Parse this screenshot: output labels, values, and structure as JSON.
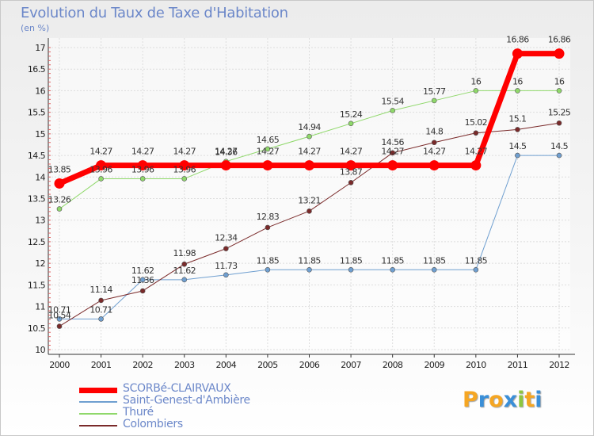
{
  "title": "Evolution du Taux de Taxe d'Habitation",
  "unit": "(en %)",
  "logo": {
    "text": "Proxiti",
    "letters": [
      {
        "ch": "P",
        "color": "#f5a623"
      },
      {
        "ch": "r",
        "color": "#3a8fd8"
      },
      {
        "ch": "o",
        "color": "#f5a623"
      },
      {
        "ch": "x",
        "color": "#3a8fd8"
      },
      {
        "ch": "i",
        "color": "#8dc63f"
      },
      {
        "ch": "t",
        "color": "#f5a623"
      },
      {
        "ch": "i",
        "color": "#3a8fd8"
      }
    ]
  },
  "chart_data": {
    "type": "line",
    "title": "Evolution du Taux de Taxe d'Habitation",
    "ylabel": "(en %)",
    "xlabel": "",
    "x": [
      2000,
      2001,
      2002,
      2003,
      2004,
      2005,
      2006,
      2007,
      2008,
      2009,
      2010,
      2011,
      2012
    ],
    "ylim": [
      10,
      17
    ],
    "yticks": [
      "10",
      "10.5",
      "11",
      "11.5",
      "12",
      "12.5",
      "13",
      "13.5",
      "14",
      "14.5",
      "15",
      "15.5",
      "16",
      "16.5",
      "17"
    ],
    "grid": true,
    "legend_position": "bottom-left",
    "series": [
      {
        "name": "SCORBé-CLAIRVAUX",
        "color": "#ff0000",
        "width": 7,
        "values": [
          13.85,
          14.27,
          14.27,
          14.27,
          14.27,
          14.27,
          14.27,
          14.27,
          14.27,
          14.27,
          14.27,
          16.86,
          16.86
        ],
        "labels": [
          "13.85",
          "14.27",
          "14.27",
          "14.27",
          "14.27",
          "14.27",
          "14.27",
          "14.27",
          "14.27",
          "14.27",
          "14.27",
          "16.86",
          "16.86"
        ]
      },
      {
        "name": "Saint-Genest-d'Ambière",
        "color": "#6f9fd0",
        "width": 1,
        "values": [
          10.71,
          10.71,
          11.62,
          11.62,
          11.73,
          11.85,
          11.85,
          11.85,
          11.85,
          11.85,
          11.85,
          14.5,
          14.5
        ],
        "labels": [
          "10.71",
          "10.71",
          "11.62",
          "11.62",
          "11.73",
          "11.85",
          "11.85",
          "11.85",
          "11.85",
          "11.85",
          "11.85",
          "14.5",
          "14.5"
        ]
      },
      {
        "name": "Thuré",
        "color": "#8fd86a",
        "width": 1,
        "values": [
          13.26,
          13.96,
          13.96,
          13.96,
          14.36,
          14.65,
          14.94,
          15.24,
          15.54,
          15.77,
          16,
          16,
          16
        ],
        "labels": [
          "13.26",
          "13.96",
          "13.96",
          "13.96",
          "14.36",
          "14.65",
          "14.94",
          "15.24",
          "15.54",
          "15.77",
          "16",
          "16",
          "16"
        ]
      },
      {
        "name": "Colombiers",
        "color": "#7a2a2a",
        "width": 1,
        "values": [
          10.54,
          11.14,
          11.36,
          11.98,
          12.34,
          12.83,
          13.21,
          13.87,
          14.56,
          14.8,
          15.02,
          15.1,
          15.25
        ],
        "labels": [
          "10.54",
          "11.14",
          "11.36",
          "11.98",
          "12.34",
          "12.83",
          "13.21",
          "13.87",
          "14.56",
          "14.8",
          "15.02",
          "15.1",
          "15.25"
        ]
      }
    ]
  }
}
